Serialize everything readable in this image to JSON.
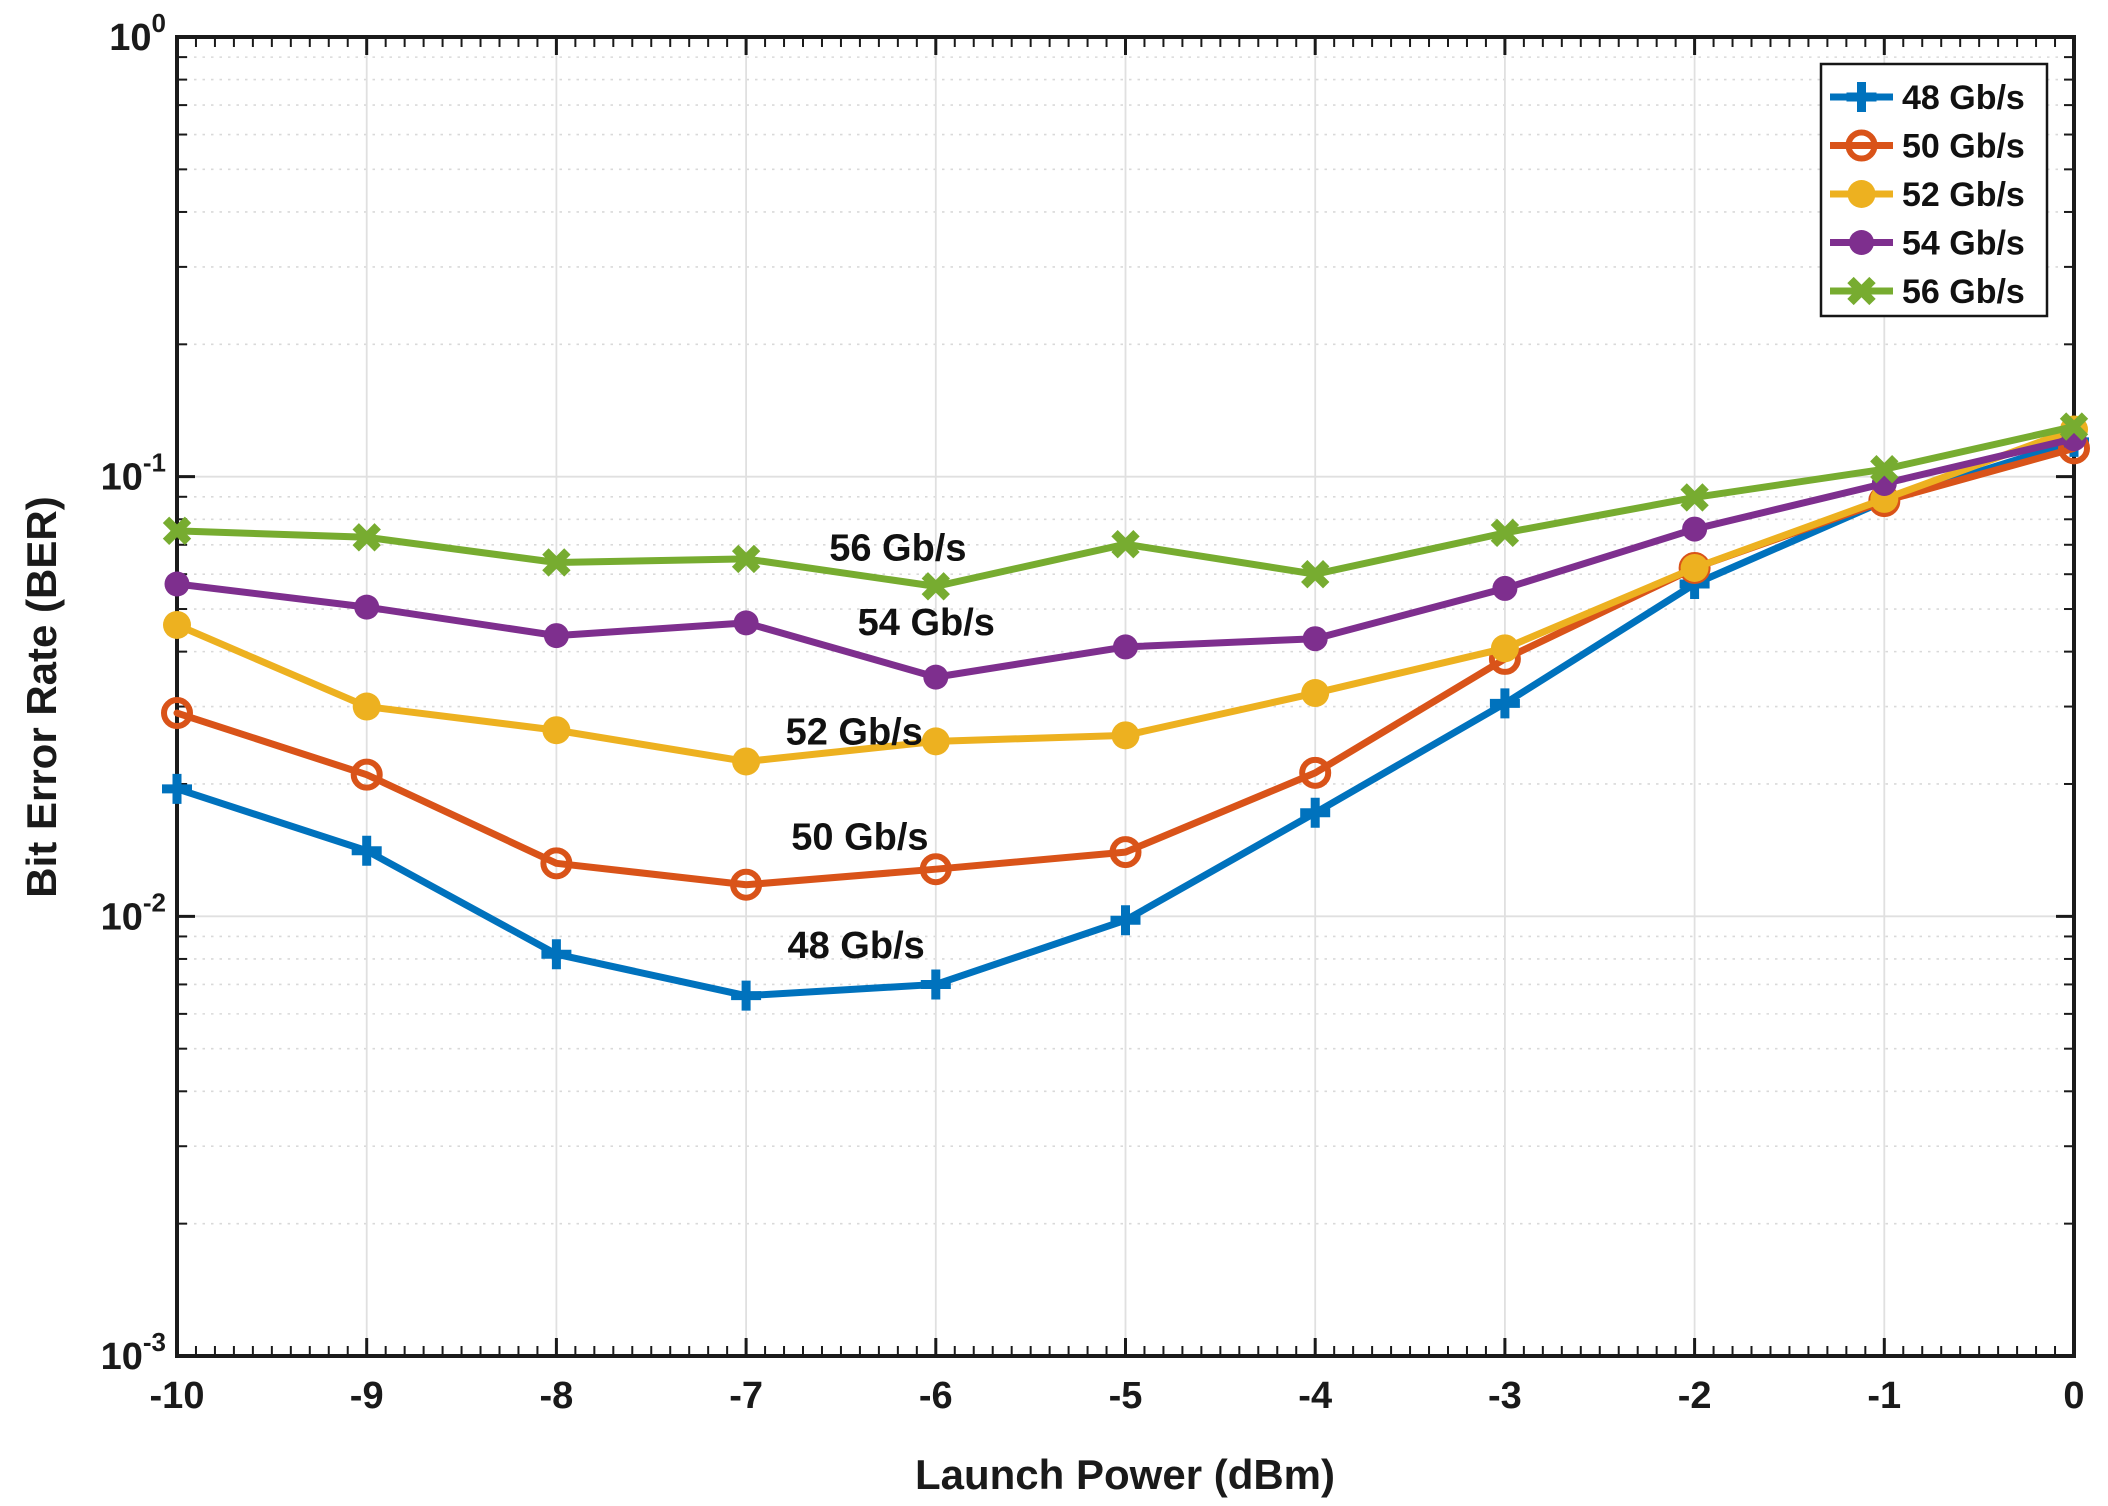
{
  "chart_data": {
    "type": "line",
    "title": "",
    "xlabel": "Launch Power (dBm)",
    "ylabel": "Bit Error Rate (BER)",
    "x": [
      -10,
      -9,
      -8,
      -7,
      -6,
      -5,
      -4,
      -3,
      -2,
      -1,
      0
    ],
    "x_tick_labels": [
      "-10",
      "-9",
      "-8",
      "-7",
      "-6",
      "-5",
      "-4",
      "-3",
      "-2",
      "-1",
      "0"
    ],
    "xlim": [
      -10,
      0
    ],
    "y_scale": "log10",
    "ylim": [
      0.001,
      1
    ],
    "y_ticks": [
      {
        "base": "10",
        "exp": "0",
        "value": 1
      },
      {
        "base": "10",
        "exp": "-1",
        "value": 0.1
      },
      {
        "base": "10",
        "exp": "-2",
        "value": 0.01
      },
      {
        "base": "10",
        "exp": "-3",
        "value": 0.001
      }
    ],
    "grid": {
      "major": true,
      "y_minor_dotted": true,
      "legend_position": "top-right"
    },
    "series": [
      {
        "name": "48 Gb/s",
        "color": "#0072BD",
        "marker": "plus",
        "values": [
          0.0195,
          0.0141,
          0.0082,
          0.0066,
          0.007,
          0.0098,
          0.0172,
          0.0305,
          0.057,
          0.088,
          0.12
        ]
      },
      {
        "name": "50 Gb/s",
        "color": "#D95319",
        "marker": "circle-open",
        "values": [
          0.029,
          0.021,
          0.0132,
          0.0118,
          0.0128,
          0.014,
          0.0212,
          0.0385,
          0.062,
          0.088,
          0.116
        ]
      },
      {
        "name": "52 Gb/s",
        "color": "#EDB120",
        "marker": "circle-filled",
        "values": [
          0.046,
          0.03,
          0.0265,
          0.0225,
          0.025,
          0.0258,
          0.0322,
          0.0407,
          0.062,
          0.089,
          0.128
        ]
      },
      {
        "name": "54 Gb/s",
        "color": "#7E2F8E",
        "marker": "dot",
        "values": [
          0.057,
          0.0505,
          0.0435,
          0.0465,
          0.035,
          0.041,
          0.0428,
          0.0557,
          0.076,
          0.0965,
          0.122
        ]
      },
      {
        "name": "56 Gb/s",
        "color": "#77AC30",
        "marker": "x",
        "values": [
          0.0753,
          0.0728,
          0.0638,
          0.065,
          0.0563,
          0.0702,
          0.06,
          0.0745,
          0.0897,
          0.104,
          0.13
        ]
      }
    ],
    "annotations": [
      {
        "label": "56 Gb/s",
        "x": -6.2,
        "y": 0.069
      },
      {
        "label": "54 Gb/s",
        "x": -6.05,
        "y": 0.0467
      },
      {
        "label": "52 Gb/s",
        "x": -6.43,
        "y": 0.0263
      },
      {
        "label": "50 Gb/s",
        "x": -6.4,
        "y": 0.0152
      },
      {
        "label": "48 Gb/s",
        "x": -6.42,
        "y": 0.0086
      }
    ],
    "colors": {
      "axis": "#1a1a1a",
      "grid_major": "#e0e0e0",
      "grid_minor": "#d9d9d9",
      "text": "#1a1a1a",
      "plot_background": "#ffffff"
    }
  }
}
